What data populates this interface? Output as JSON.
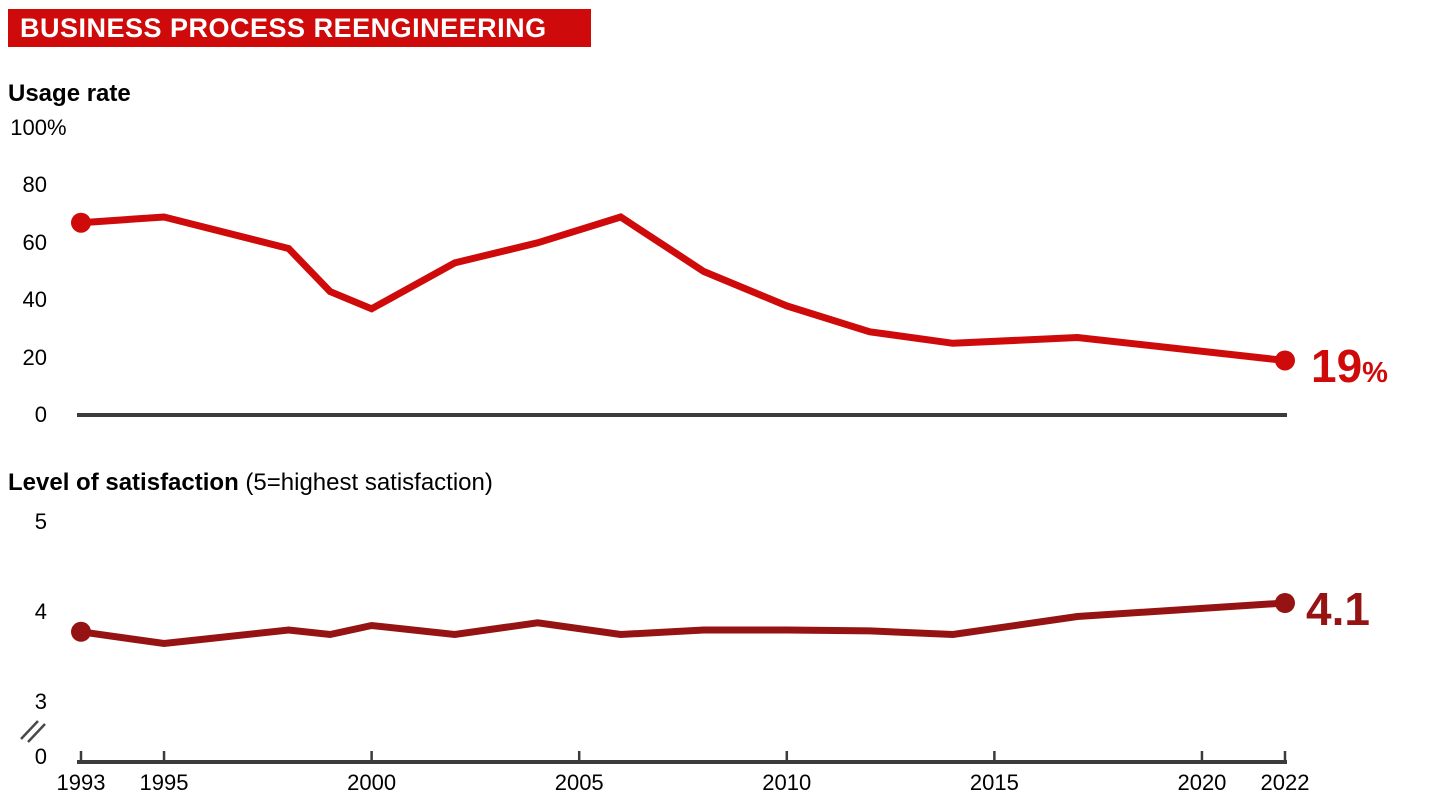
{
  "header": {
    "title": "BUSINESS PROCESS REENGINEERING"
  },
  "colors": {
    "banner_bg": "#cf0a0a",
    "usage_line": "#cf0a0a",
    "satisfaction_line": "#951413",
    "axis": "#3b3b3b",
    "axis_break": "#4a4a4a"
  },
  "usage": {
    "title": "Usage rate",
    "y_ticks": [
      {
        "label": "100",
        "suffix": "%",
        "value": 100
      },
      {
        "label": "80",
        "value": 80
      },
      {
        "label": "60",
        "value": 60
      },
      {
        "label": "40",
        "value": 40
      },
      {
        "label": "20",
        "value": 20
      },
      {
        "label": "0",
        "value": 0
      }
    ],
    "end_label": {
      "value": "19",
      "unit": "%"
    }
  },
  "satisfaction": {
    "title": "Level of satisfaction",
    "title_note": "(5=highest satisfaction)",
    "y_ticks": [
      {
        "label": "5",
        "value": 5
      },
      {
        "label": "4",
        "value": 4
      },
      {
        "label": "3",
        "value": 3
      },
      {
        "label": "0",
        "value": 0
      }
    ],
    "end_label": {
      "value": "4.1",
      "unit": ""
    }
  },
  "x_axis": {
    "labels": [
      "1993",
      "1995",
      "2000",
      "2005",
      "2010",
      "2015",
      "2020",
      "2022"
    ]
  },
  "chart_data": [
    {
      "type": "line",
      "title": "Usage rate",
      "ylabel": "Usage rate (%)",
      "ylim": [
        0,
        100
      ],
      "xlim": [
        1993,
        2022
      ],
      "grid": false,
      "end_annotation": "19%",
      "series": [
        {
          "name": "Business Process Reengineering usage rate",
          "points": [
            [
              1993,
              67
            ],
            [
              1995,
              69
            ],
            [
              1998,
              58
            ],
            [
              1999,
              43
            ],
            [
              2000,
              37
            ],
            [
              2002,
              53
            ],
            [
              2004,
              60
            ],
            [
              2006,
              69
            ],
            [
              2008,
              50
            ],
            [
              2010,
              38
            ],
            [
              2012,
              29
            ],
            [
              2014,
              25
            ],
            [
              2017,
              27
            ],
            [
              2022,
              19
            ]
          ]
        }
      ]
    },
    {
      "type": "line",
      "title": "Level of satisfaction (5=highest satisfaction)",
      "ylabel": "Satisfaction (1-5)",
      "ylim_shown": [
        3,
        5
      ],
      "axis_break": true,
      "xlim": [
        1993,
        2022
      ],
      "grid": false,
      "end_annotation": "4.1",
      "series": [
        {
          "name": "Business Process Reengineering satisfaction",
          "points": [
            [
              1993,
              3.78
            ],
            [
              1995,
              3.65
            ],
            [
              1996,
              3.7
            ],
            [
              1998,
              3.8
            ],
            [
              1999,
              3.75
            ],
            [
              2000,
              3.85
            ],
            [
              2002,
              3.75
            ],
            [
              2004,
              3.88
            ],
            [
              2006,
              3.75
            ],
            [
              2008,
              3.8
            ],
            [
              2010,
              3.8
            ],
            [
              2012,
              3.79
            ],
            [
              2014,
              3.75
            ],
            [
              2017,
              3.95
            ],
            [
              2022,
              4.1
            ]
          ]
        }
      ]
    }
  ]
}
